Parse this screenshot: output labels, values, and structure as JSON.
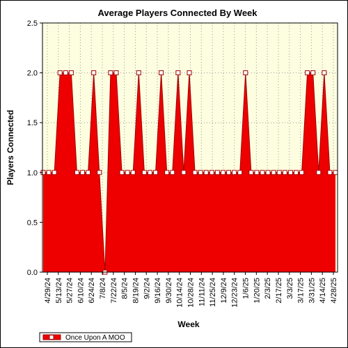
{
  "chart_data": {
    "type": "area",
    "title": "Average Players Connected By Week",
    "xlabel": "Week",
    "ylabel": "Players Connected",
    "ylim": [
      0,
      2.5
    ],
    "yticks": [
      "0.0",
      "0.5",
      "1.0",
      "1.5",
      "2.0",
      "2.5"
    ],
    "x_tick_labels": [
      "4/29/24",
      "5/13/24",
      "5/27/24",
      "6/10/24",
      "6/24/24",
      "7/8/24",
      "7/22/24",
      "8/5/24",
      "8/19/24",
      "9/2/24",
      "9/16/24",
      "9/30/24",
      "10/14/24",
      "10/28/24",
      "11/11/24",
      "11/25/24",
      "12/9/24",
      "12/23/24",
      "1/6/25",
      "1/20/25",
      "2/3/25",
      "2/17/25",
      "3/3/25",
      "3/17/25",
      "3/31/25",
      "4/14/25",
      "4/28/25"
    ],
    "grid": true,
    "legend_position": "bottom-left",
    "series": [
      {
        "name": "Once Upon A MOO",
        "color": "#ee0000",
        "values": [
          1,
          1,
          1,
          2,
          2,
          2,
          1,
          1,
          1,
          2,
          1,
          0,
          2,
          2,
          1,
          1,
          1,
          2,
          1,
          1,
          1,
          2,
          1,
          1,
          2,
          1,
          2,
          1,
          1,
          1,
          1,
          1,
          1,
          1,
          1,
          1,
          2,
          1,
          1,
          1,
          1,
          1,
          1,
          1,
          1,
          1,
          1,
          2,
          2,
          1,
          2,
          1,
          1
        ]
      }
    ]
  },
  "colors": {
    "plot_background": "#fdfde0",
    "fill": "#ee0000",
    "line": "#a00000",
    "grid": "#999999"
  }
}
